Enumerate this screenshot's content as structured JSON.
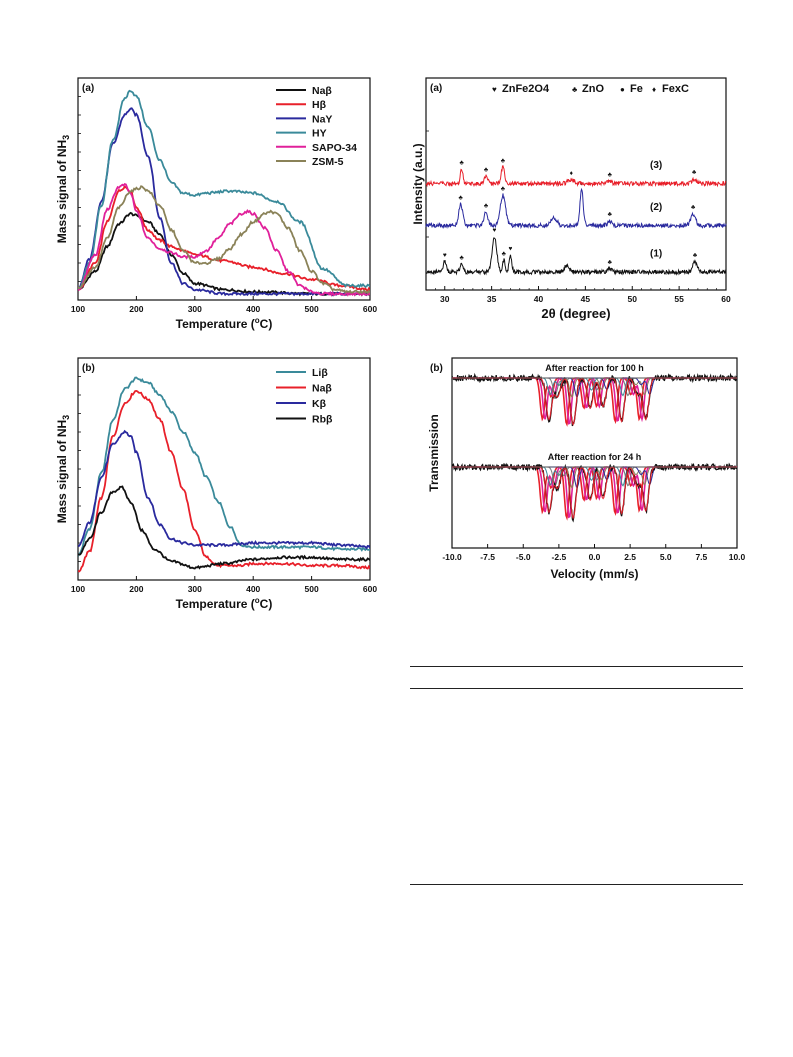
{
  "chart_data": [
    {
      "id": "tpd_zeolites",
      "type": "line",
      "panel_label": "(a)",
      "xlabel": "Temperature (°C)",
      "ylabel": "Mass signal of NH3",
      "xlim": [
        100,
        600
      ],
      "x_ticks": [
        "100",
        "200",
        "300",
        "400",
        "500",
        "600"
      ],
      "y_ticks_labeled": false,
      "legend_position": "top-right",
      "series": [
        {
          "name": "Naβ",
          "color": "#111111",
          "x": [
            100,
            130,
            150,
            170,
            190,
            200,
            220,
            240,
            260,
            280,
            300,
            350,
            400,
            500,
            600
          ],
          "y": [
            0.05,
            0.14,
            0.26,
            0.37,
            0.42,
            0.41,
            0.38,
            0.32,
            0.22,
            0.13,
            0.08,
            0.05,
            0.04,
            0.03,
            0.03
          ]
        },
        {
          "name": "Hβ",
          "color": "#e8202a",
          "x": [
            100,
            130,
            150,
            170,
            180,
            190,
            200,
            220,
            240,
            260,
            280,
            300,
            350,
            400,
            450,
            500,
            550,
            600
          ],
          "y": [
            0.05,
            0.18,
            0.38,
            0.53,
            0.55,
            0.53,
            0.45,
            0.34,
            0.29,
            0.26,
            0.24,
            0.22,
            0.19,
            0.16,
            0.13,
            0.1,
            0.07,
            0.05
          ]
        },
        {
          "name": "NaY",
          "color": "#2a2a9e",
          "x": [
            100,
            120,
            140,
            160,
            180,
            190,
            200,
            220,
            240,
            260,
            280,
            300,
            350,
            400,
            500,
            600
          ],
          "y": [
            0.05,
            0.2,
            0.48,
            0.76,
            0.9,
            0.93,
            0.9,
            0.7,
            0.4,
            0.18,
            0.08,
            0.05,
            0.03,
            0.03,
            0.03,
            0.03
          ]
        },
        {
          "name": "HY",
          "color": "#3a8a9a",
          "x": [
            100,
            120,
            140,
            160,
            180,
            190,
            200,
            220,
            240,
            260,
            280,
            300,
            320,
            360,
            400,
            440,
            480,
            520,
            560,
            600
          ],
          "y": [
            0.05,
            0.18,
            0.46,
            0.78,
            0.98,
            1.02,
            0.99,
            0.84,
            0.68,
            0.57,
            0.52,
            0.51,
            0.52,
            0.53,
            0.52,
            0.48,
            0.38,
            0.15,
            0.07,
            0.07
          ]
        },
        {
          "name": "SAPO-34",
          "color": "#e0209a",
          "x": [
            100,
            130,
            150,
            170,
            180,
            190,
            200,
            220,
            240,
            260,
            280,
            300,
            320,
            340,
            360,
            380,
            390,
            400,
            420,
            440,
            460,
            480,
            500,
            520,
            540,
            600
          ],
          "y": [
            0.05,
            0.22,
            0.44,
            0.55,
            0.56,
            0.52,
            0.43,
            0.3,
            0.25,
            0.23,
            0.21,
            0.21,
            0.24,
            0.3,
            0.37,
            0.42,
            0.43,
            0.42,
            0.35,
            0.24,
            0.14,
            0.07,
            0.04,
            0.03,
            0.03,
            0.03
          ]
        },
        {
          "name": "ZSM-5",
          "color": "#8a8258",
          "x": [
            100,
            130,
            150,
            170,
            190,
            200,
            210,
            220,
            240,
            260,
            280,
            300,
            320,
            340,
            360,
            380,
            400,
            420,
            430,
            440,
            460,
            480,
            500,
            520,
            540,
            560,
            600
          ],
          "y": [
            0.06,
            0.16,
            0.3,
            0.45,
            0.53,
            0.54,
            0.55,
            0.53,
            0.46,
            0.34,
            0.24,
            0.18,
            0.18,
            0.2,
            0.25,
            0.32,
            0.38,
            0.42,
            0.43,
            0.42,
            0.35,
            0.24,
            0.14,
            0.08,
            0.05,
            0.04,
            0.04
          ]
        }
      ]
    },
    {
      "id": "xrd",
      "type": "line",
      "panel_label": "(a)",
      "xlabel": "2θ (degree)",
      "ylabel": "Intensity (a.u.)",
      "xlim": [
        28,
        60
      ],
      "x_ticks": [
        "30",
        "35",
        "40",
        "45",
        "50",
        "55",
        "60"
      ],
      "y_ticks_labeled": false,
      "legend": [
        {
          "symbol": "♥",
          "label": "ZnFe2O4"
        },
        {
          "symbol": "♣",
          "label": "ZnO"
        },
        {
          "symbol": "●",
          "label": "Fe"
        },
        {
          "symbol": "♦",
          "label": "FexC"
        }
      ],
      "legend_position": "top",
      "series": [
        {
          "name": "(1)",
          "color": "#111111",
          "offset": 0.0,
          "peaks": [
            [
              30.0,
              0.22,
              0.25
            ],
            [
              31.8,
              0.16,
              0.25
            ],
            [
              35.3,
              0.75,
              0.35
            ],
            [
              36.3,
              0.25,
              0.2
            ],
            [
              37.0,
              0.35,
              0.2
            ],
            [
              43.0,
              0.12,
              0.4
            ],
            [
              47.6,
              0.06,
              0.3
            ],
            [
              56.7,
              0.22,
              0.35
            ]
          ],
          "markers": [
            {
              "x": 30.0,
              "symbol": "♥"
            },
            {
              "x": 31.8,
              "symbol": "♣"
            },
            {
              "x": 35.3,
              "symbol": "♥"
            },
            {
              "x": 36.3,
              "symbol": "♣"
            },
            {
              "x": 37.0,
              "symbol": "♥"
            },
            {
              "x": 47.6,
              "symbol": "♣"
            },
            {
              "x": 56.7,
              "symbol": "♣"
            }
          ]
        },
        {
          "name": "(2)",
          "color": "#2a2a9e",
          "offset": 1.0,
          "peaks": [
            [
              31.7,
              0.45,
              0.3
            ],
            [
              34.4,
              0.28,
              0.3
            ],
            [
              36.2,
              0.65,
              0.4
            ],
            [
              41.6,
              0.15,
              0.5
            ],
            [
              44.6,
              0.75,
              0.25
            ],
            [
              47.6,
              0.1,
              0.3
            ],
            [
              56.5,
              0.25,
              0.35
            ]
          ],
          "markers": [
            {
              "x": 31.7,
              "symbol": "♣"
            },
            {
              "x": 34.4,
              "symbol": "♣"
            },
            {
              "x": 36.2,
              "symbol": "♣"
            },
            {
              "x": 44.6,
              "symbol": "●"
            },
            {
              "x": 47.6,
              "symbol": "♣"
            },
            {
              "x": 56.5,
              "symbol": "♣"
            }
          ]
        },
        {
          "name": "(3)",
          "color": "#e8202a",
          "offset": 1.9,
          "peaks": [
            [
              31.8,
              0.3,
              0.2
            ],
            [
              34.4,
              0.15,
              0.25
            ],
            [
              36.2,
              0.35,
              0.25
            ],
            [
              43.5,
              0.08,
              0.5
            ],
            [
              47.6,
              0.05,
              0.3
            ],
            [
              56.6,
              0.1,
              0.35
            ]
          ],
          "markers": [
            {
              "x": 31.8,
              "symbol": "♣"
            },
            {
              "x": 34.4,
              "symbol": "♣"
            },
            {
              "x": 36.2,
              "symbol": "♣"
            },
            {
              "x": 43.5,
              "symbol": "♦"
            },
            {
              "x": 47.6,
              "symbol": "♣"
            },
            {
              "x": 56.6,
              "symbol": "♣"
            }
          ]
        }
      ]
    },
    {
      "id": "tpd_alkali",
      "type": "line",
      "panel_label": "(b)",
      "xlabel": "Temperature (°C)",
      "ylabel": "Mass signal of NH3",
      "xlim": [
        100,
        600
      ],
      "x_ticks": [
        "100",
        "200",
        "300",
        "400",
        "500",
        "600"
      ],
      "y_ticks_labeled": false,
      "legend_position": "top-right",
      "series": [
        {
          "name": "Liβ",
          "color": "#3a8a9a",
          "x": [
            100,
            120,
            140,
            160,
            180,
            200,
            220,
            240,
            260,
            280,
            300,
            320,
            340,
            360,
            380,
            400,
            450,
            500,
            550,
            600
          ],
          "y": [
            0.12,
            0.25,
            0.52,
            0.78,
            0.93,
            0.98,
            0.96,
            0.9,
            0.82,
            0.72,
            0.62,
            0.5,
            0.38,
            0.26,
            0.17,
            0.16,
            0.16,
            0.16,
            0.15,
            0.15
          ]
        },
        {
          "name": "Naβ",
          "color": "#e8202a",
          "x": [
            100,
            120,
            140,
            160,
            180,
            200,
            220,
            240,
            260,
            280,
            300,
            320,
            340,
            360,
            380,
            400,
            450,
            500,
            550,
            600
          ],
          "y": [
            0.04,
            0.14,
            0.4,
            0.7,
            0.86,
            0.92,
            0.88,
            0.78,
            0.62,
            0.44,
            0.24,
            0.11,
            0.07,
            0.07,
            0.07,
            0.08,
            0.08,
            0.07,
            0.07,
            0.06
          ]
        },
        {
          "name": "Kβ",
          "color": "#2a2a9e",
          "x": [
            100,
            120,
            140,
            160,
            180,
            190,
            200,
            220,
            240,
            260,
            280,
            300,
            350,
            400,
            450,
            500,
            550,
            600
          ],
          "y": [
            0.16,
            0.28,
            0.5,
            0.66,
            0.72,
            0.7,
            0.62,
            0.4,
            0.27,
            0.2,
            0.18,
            0.17,
            0.17,
            0.18,
            0.18,
            0.18,
            0.17,
            0.16
          ]
        },
        {
          "name": "Rbβ",
          "color": "#111111",
          "x": [
            100,
            120,
            140,
            160,
            175,
            190,
            210,
            230,
            260,
            300,
            350,
            400,
            450,
            500,
            550,
            600
          ],
          "y": [
            0.12,
            0.2,
            0.33,
            0.43,
            0.45,
            0.38,
            0.24,
            0.15,
            0.09,
            0.06,
            0.08,
            0.1,
            0.11,
            0.11,
            0.1,
            0.1
          ]
        }
      ]
    },
    {
      "id": "mossbauer",
      "type": "line",
      "panel_label": "(b)",
      "xlabel": "Velocity (mm/s)",
      "ylabel": "Transmission",
      "xlim": [
        -10,
        10
      ],
      "x_ticks": [
        "-10.0",
        "-7.5",
        "-5.0",
        "-2.5",
        "0.0",
        "2.5",
        "5.0",
        "7.5",
        "10.0"
      ],
      "y_ticks_labeled": false,
      "series": [
        {
          "name": "After reaction for 100 h",
          "color": "#111111",
          "dips": [
            [
              -3.2,
              0.55
            ],
            [
              -1.5,
              0.62
            ],
            [
              -0.3,
              0.4
            ],
            [
              0.6,
              0.38
            ],
            [
              1.9,
              0.58
            ],
            [
              3.6,
              0.55
            ],
            [
              -2.6,
              0.25
            ],
            [
              3.0,
              0.22
            ]
          ]
        },
        {
          "name": "After reaction for 24 h",
          "color": "#111111",
          "dips": [
            [
              -3.2,
              0.6
            ],
            [
              -1.5,
              0.68
            ],
            [
              -0.3,
              0.44
            ],
            [
              0.6,
              0.42
            ],
            [
              1.9,
              0.62
            ],
            [
              3.6,
              0.58
            ],
            [
              -2.6,
              0.28
            ],
            [
              3.0,
              0.25
            ]
          ]
        }
      ],
      "subspectra_colors": [
        "#e8202a",
        "#e0209a",
        "#8a8258",
        "#3a8a9a",
        "#2a2a9e",
        "#777777"
      ]
    }
  ]
}
